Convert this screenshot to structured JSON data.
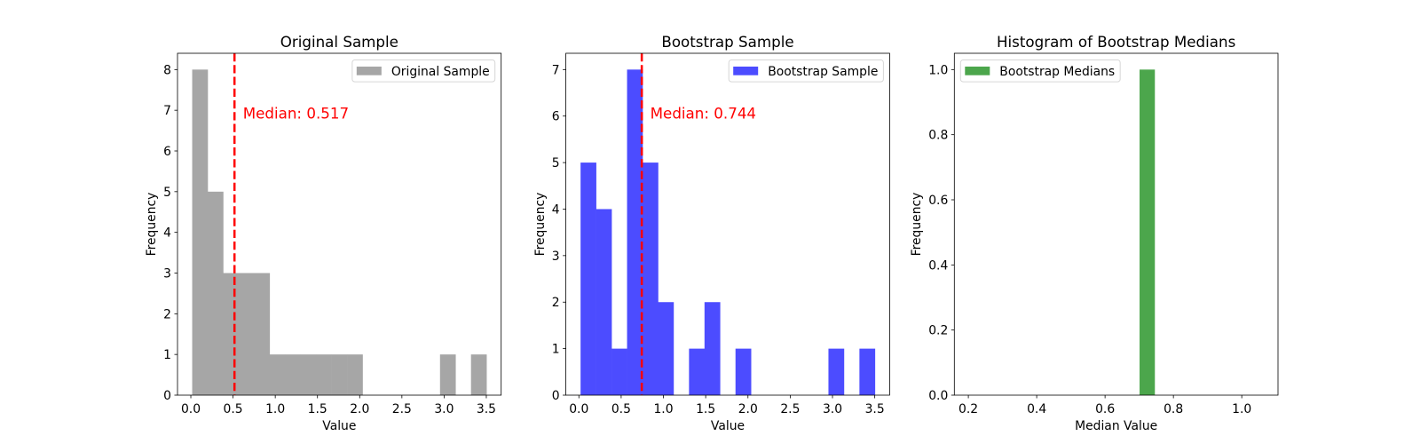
{
  "chart_data": [
    {
      "type": "bar",
      "title": "Original Sample",
      "xlabel": "Value",
      "ylabel": "Frequency",
      "xlim": [
        -0.158,
        3.676
      ],
      "ylim": [
        0,
        8.4
      ],
      "xticks": [
        0,
        0.5,
        1.0,
        1.5,
        2.0,
        2.5,
        3.0,
        3.5
      ],
      "xtick_labels": [
        "0.0",
        "0.5",
        "1.0",
        "1.5",
        "2.0",
        "2.5",
        "3.0",
        "3.5"
      ],
      "yticks": [
        0,
        1,
        2,
        3,
        4,
        5,
        6,
        7,
        8
      ],
      "ytick_labels": [
        "0",
        "1",
        "2",
        "3",
        "4",
        "5",
        "6",
        "7",
        "8"
      ],
      "bin_range": [
        0.016,
        3.502
      ],
      "bins": 19,
      "counts": [
        8,
        5,
        3,
        3,
        3,
        1,
        1,
        1,
        1,
        1,
        1,
        0,
        0,
        0,
        0,
        0,
        1,
        0,
        1
      ],
      "color": "#a6a6a6",
      "legend": {
        "label": "Original Sample",
        "position": "upper right"
      },
      "median": {
        "value": 0.517,
        "label": "Median: 0.517",
        "label_y": 6.8,
        "color": "#ff0000"
      },
      "grid": false
    },
    {
      "type": "bar",
      "title": "Bootstrap Sample",
      "xlabel": "Value",
      "ylabel": "Frequency",
      "xlim": [
        -0.154,
        3.676
      ],
      "ylim": [
        0,
        7.35
      ],
      "xticks": [
        0,
        0.5,
        1.0,
        1.5,
        2.0,
        2.5,
        3.0,
        3.5
      ],
      "xtick_labels": [
        "0.0",
        "0.5",
        "1.0",
        "1.5",
        "2.0",
        "2.5",
        "3.0",
        "3.5"
      ],
      "yticks": [
        0,
        1,
        2,
        3,
        4,
        5,
        6,
        7
      ],
      "ytick_labels": [
        "0",
        "1",
        "2",
        "3",
        "4",
        "5",
        "6",
        "7"
      ],
      "bin_range": [
        0.02,
        3.502
      ],
      "bins": 19,
      "counts": [
        5,
        4,
        1,
        7,
        5,
        2,
        0,
        1,
        2,
        0,
        1,
        0,
        0,
        0,
        0,
        0,
        1,
        0,
        1
      ],
      "color": "#4c4cff",
      "legend": {
        "label": "Bootstrap Sample",
        "position": "upper right"
      },
      "median": {
        "value": 0.744,
        "label": "Median: 0.744",
        "label_y": 5.95,
        "color": "#ff0000"
      },
      "grid": false
    },
    {
      "type": "bar",
      "title": "Histogram of Bootstrap Medians",
      "xlabel": "Median Value",
      "ylabel": "Frequency",
      "xlim": [
        0.159,
        1.106
      ],
      "ylim": [
        0,
        1.05
      ],
      "xticks": [
        0.2,
        0.4,
        0.6,
        0.8,
        1.0
      ],
      "xtick_labels": [
        "0.2",
        "0.4",
        "0.6",
        "0.8",
        "1.0"
      ],
      "yticks": [
        0,
        0.2,
        0.4,
        0.6,
        0.8,
        1.0
      ],
      "ytick_labels": [
        "0.0",
        "0.2",
        "0.4",
        "0.6",
        "0.8",
        "1.0"
      ],
      "bin_range": [
        0.701,
        0.745
      ],
      "bins": 1,
      "counts": [
        1
      ],
      "color": "#4ca64c",
      "legend": {
        "label": "Bootstrap Medians",
        "position": "upper left"
      },
      "grid": false
    }
  ]
}
